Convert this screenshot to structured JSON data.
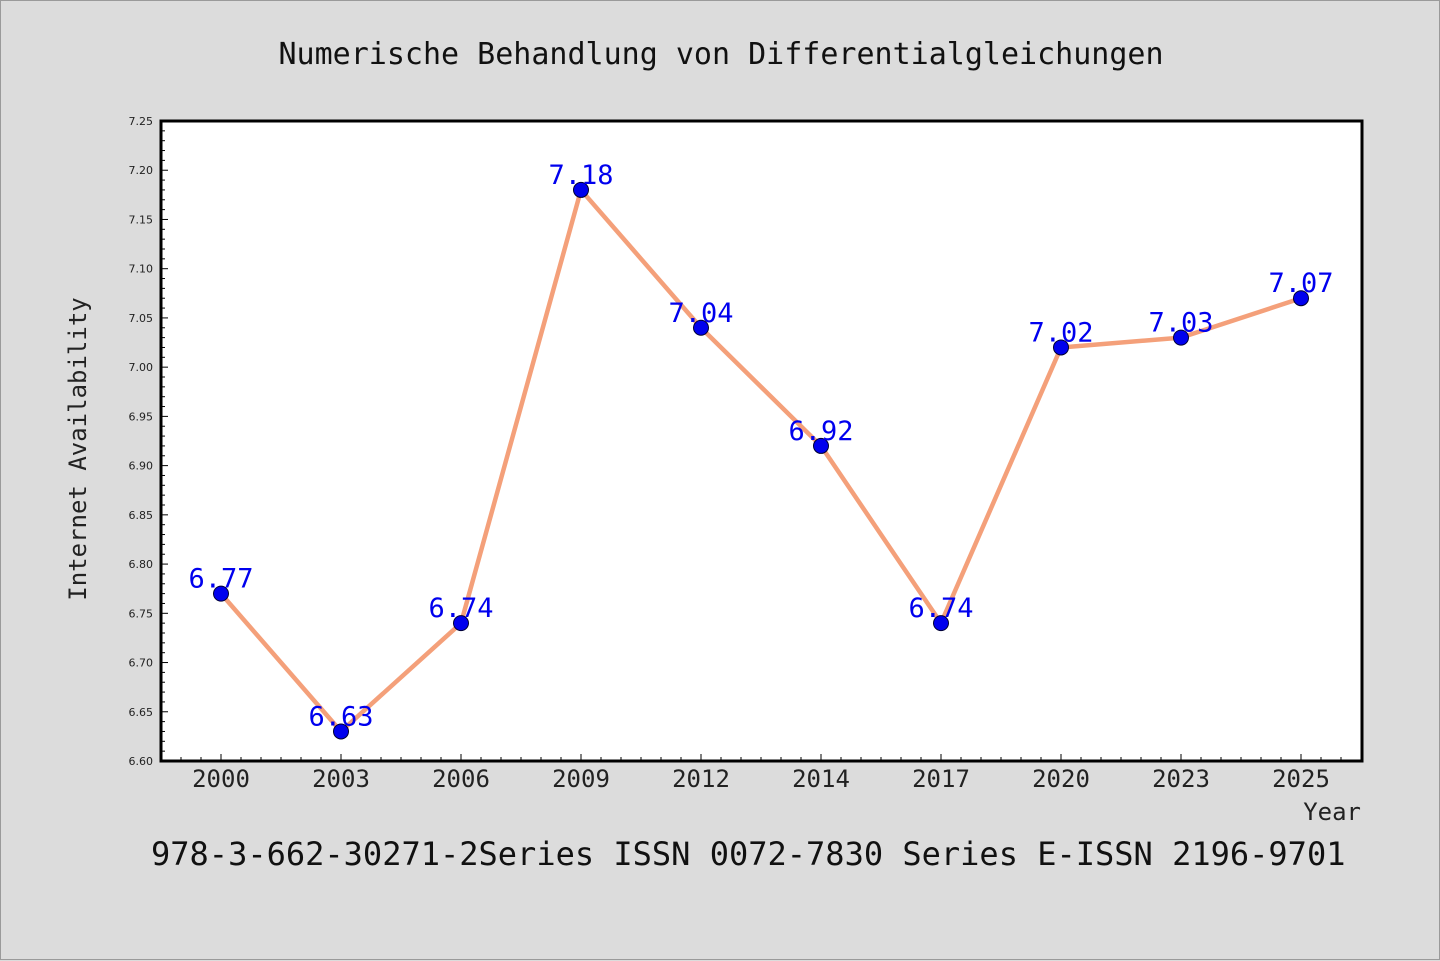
{
  "chart_data": {
    "type": "line",
    "title": "Numerische Behandlung von Differentialgleichungen",
    "xlabel": "Year",
    "ylabel": "Internet Availability",
    "caption": "978-3-662-30271-2Series ISSN 0072-7830 Series E-ISSN 2196-9701",
    "categories": [
      "2000",
      "2003",
      "2006",
      "2009",
      "2012",
      "2014",
      "2017",
      "2020",
      "2023",
      "2025"
    ],
    "values": [
      6.77,
      6.63,
      6.74,
      7.18,
      7.04,
      6.92,
      6.74,
      7.02,
      7.03,
      7.07
    ],
    "value_labels": [
      "6.77",
      "6.63",
      "6.74",
      "7.18",
      "7.04",
      "6.92",
      "6.74",
      "7.02",
      "7.03",
      "7.07"
    ],
    "ylim": [
      6.6,
      7.25
    ],
    "yticks": [
      "6.60",
      "6.65",
      "6.70",
      "6.75",
      "6.80",
      "6.85",
      "6.90",
      "6.95",
      "7.00",
      "7.05",
      "7.10",
      "7.15",
      "7.20",
      "7.25"
    ],
    "grid": false,
    "legend": "none",
    "colors": {
      "line": "#f4a07a",
      "marker": "#0000ee",
      "marker_edge": "#000033",
      "label": "#0000ee",
      "background": "#dcdcdc",
      "plot_background": "#ffffff"
    }
  }
}
